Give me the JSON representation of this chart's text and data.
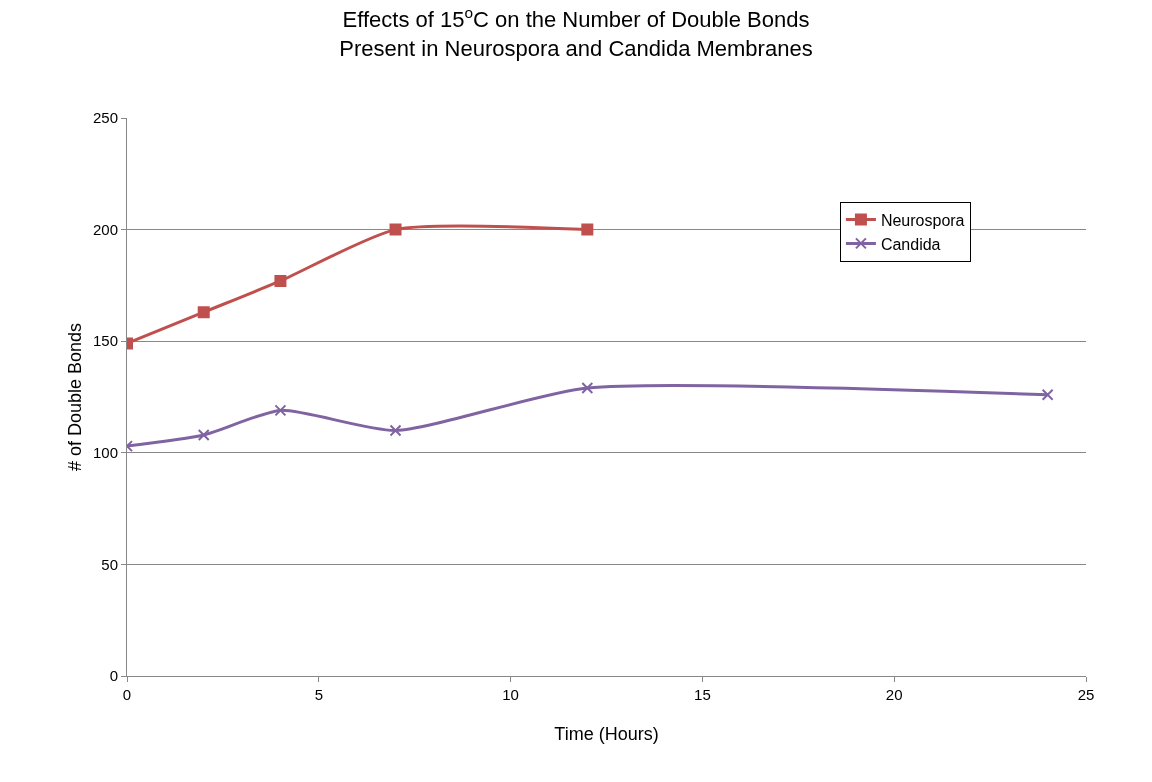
{
  "chart_data": {
    "type": "line",
    "title": "Effects of 15$^{o}$C on the Number of Double Bonds\nPresent in Neurospora and Candida Membranes",
    "xlabel": "Time (Hours)",
    "ylabel": "# of Double Bonds",
    "x": [
      0,
      2,
      4,
      7,
      12
    ],
    "series": [
      {
        "name": "Neurospora",
        "color": "#c0504d",
        "marker": "square",
        "values": [
          149,
          163,
          177,
          200,
          200
        ]
      },
      {
        "name": "Candida",
        "color": "#8064a2",
        "marker": "cross",
        "x": [
          0,
          2,
          4,
          7,
          12,
          24
        ],
        "values": [
          103,
          108,
          119,
          110,
          129,
          126
        ]
      }
    ],
    "xlim": [
      0,
      25
    ],
    "xticks": [
      0,
      5,
      10,
      15,
      20,
      25
    ],
    "ylim": [
      0,
      250
    ],
    "yticks": [
      0,
      50,
      100,
      150,
      200,
      250
    ],
    "grid": "y",
    "legend": "top right",
    "line_style": "solid"
  }
}
